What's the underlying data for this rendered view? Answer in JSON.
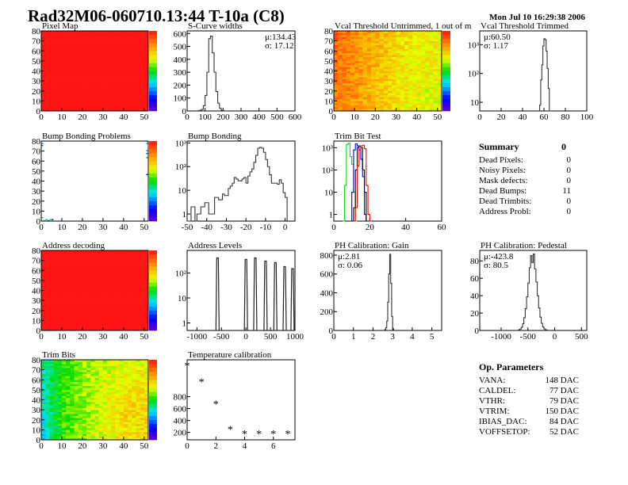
{
  "header": {
    "title": "Rad32M06-060710.13:44 T-10a (C8)",
    "date": "Mon Jul 10 16:29:38 2006"
  },
  "summary": {
    "title": "Summary",
    "value": "0",
    "rows": [
      {
        "label": "Dead Pixels:",
        "value": "0"
      },
      {
        "label": "Noisy Pixels:",
        "value": "0"
      },
      {
        "label": "Mask defects:",
        "value": "0"
      },
      {
        "label": "Dead Bumps:",
        "value": "11"
      },
      {
        "label": "Dead Trimbits:",
        "value": "0"
      },
      {
        "label": "Address Probl:",
        "value": "0"
      }
    ]
  },
  "op_parameters": {
    "title": "Op. Parameters",
    "rows": [
      {
        "label": "VANA:",
        "value": "148 DAC"
      },
      {
        "label": "CALDEL:",
        "value": "77 DAC"
      },
      {
        "label": "VTHR:",
        "value": "79 DAC"
      },
      {
        "label": "VTRIM:",
        "value": "150 DAC"
      },
      {
        "label": "IBIAS_DAC:",
        "value": "84 DAC"
      },
      {
        "label": "VOFFSETOP:",
        "value": "52 DAC"
      }
    ]
  },
  "chart_data": [
    {
      "type": "heatmap",
      "title": "Pixel Map",
      "xlim": [
        0,
        52
      ],
      "ylim": [
        0,
        80
      ],
      "zlim": [
        0,
        10
      ],
      "xticks": [
        "0",
        "10",
        "20",
        "30",
        "40",
        "50"
      ],
      "yticks": [
        "0",
        "10",
        "20",
        "30",
        "40",
        "50",
        "60",
        "70",
        "80"
      ],
      "grid": [
        [
          10,
          10,
          10,
          10,
          10,
          10
        ],
        [
          10,
          10,
          10,
          10,
          10,
          10
        ],
        [
          10,
          10,
          10,
          10,
          10,
          10
        ],
        [
          10,
          10,
          10,
          10,
          10,
          10
        ]
      ]
    },
    {
      "type": "bar",
      "title": "S-Curve widths",
      "xlim": [
        0,
        600
      ],
      "ylim": [
        0,
        620
      ],
      "log": false,
      "xticks": [
        "0",
        "100",
        "200",
        "300",
        "400",
        "500",
        "600"
      ],
      "yticks": [
        "0",
        "100",
        "200",
        "300",
        "400",
        "500",
        "600"
      ],
      "stats": {
        "mu": "μ:134.43",
        "sigma": "σ: 17.12"
      },
      "bin_start": 60,
      "bin_width": 10,
      "values": [
        2,
        5,
        12,
        40,
        120,
        300,
        560,
        580,
        450,
        300,
        150,
        60,
        20,
        5,
        2,
        0
      ]
    },
    {
      "type": "heatmap",
      "title": "Vcal Threshold Untrimmed, 1 out of m",
      "xlim": [
        0,
        52
      ],
      "ylim": [
        0,
        80
      ],
      "zlim": [
        0,
        130
      ],
      "xticks": [
        "0",
        "10",
        "20",
        "30",
        "40",
        "50"
      ],
      "yticks": [
        "0",
        "10",
        "20",
        "30",
        "40",
        "50",
        "60",
        "70",
        "80"
      ],
      "grid": [
        [
          110,
          104,
          97,
          90,
          86,
          85
        ],
        [
          112,
          105,
          98,
          90,
          86,
          86
        ],
        [
          114,
          106,
          99,
          91,
          88,
          87
        ],
        [
          116,
          108,
          100,
          93,
          90,
          88
        ]
      ]
    },
    {
      "type": "bar",
      "title": "Vcal Threshold Trimmed",
      "xlim": [
        0,
        100
      ],
      "ylim": [
        5,
        3000
      ],
      "log": true,
      "xticks": [
        "0",
        "20",
        "40",
        "60",
        "80",
        "100"
      ],
      "yticks": [
        "10",
        "10²",
        "10³"
      ],
      "stats": {
        "mu": "μ:60.50",
        "sigma": "σ: 1.17"
      },
      "bin_start": 56,
      "bin_width": 1,
      "values": [
        8,
        60,
        200,
        900,
        1600,
        1500,
        600,
        150,
        30,
        5
      ]
    },
    {
      "type": "heatmap",
      "title": "Bump Bonding Problems",
      "xlim": [
        0,
        52
      ],
      "ylim": [
        0,
        80
      ],
      "zlim": [
        0,
        2
      ],
      "xticks": [
        "0",
        "10",
        "20",
        "30",
        "40",
        "50"
      ],
      "yticks": [
        "0",
        "10",
        "20",
        "30",
        "40",
        "50",
        "60",
        "70",
        "80"
      ],
      "points": [
        [
          0,
          75,
          0.5
        ],
        [
          0,
          77,
          0.5
        ],
        [
          52,
          79,
          0.7
        ],
        [
          52,
          77,
          0.5
        ],
        [
          52,
          70,
          0.5
        ],
        [
          52,
          67,
          0.4
        ],
        [
          52,
          63,
          0.5
        ],
        [
          52,
          46,
          0.3
        ],
        [
          0,
          3,
          1.0
        ],
        [
          1,
          0,
          0.8
        ],
        [
          2,
          1,
          0.6
        ],
        [
          3,
          0,
          0.5
        ],
        [
          4,
          1,
          1.0
        ],
        [
          5,
          1,
          0.3
        ]
      ]
    },
    {
      "type": "bar",
      "title": "Bump Bonding",
      "xlim": [
        -50,
        5
      ],
      "ylim": [
        0.5,
        1200
      ],
      "log": true,
      "xticks": [
        "-50",
        "-40",
        "-30",
        "-20",
        "-10",
        "0"
      ],
      "yticks": [
        "1",
        "10",
        "10²",
        "10³"
      ],
      "bin_start": -50,
      "bin_width": 1,
      "values": [
        0.4,
        0.4,
        2,
        2,
        0.4,
        1,
        1,
        2,
        2,
        3,
        3,
        1,
        1,
        1,
        5,
        5,
        4,
        4,
        7,
        6,
        6,
        12,
        15,
        20,
        35,
        30,
        25,
        25,
        30,
        35,
        20,
        40,
        60,
        80,
        150,
        300,
        600,
        650,
        600,
        400,
        200,
        100,
        45,
        20,
        20,
        20,
        18,
        28,
        20,
        8,
        5
      ]
    },
    {
      "type": "bar",
      "title": "Trim Bit Test",
      "xlim": [
        0,
        60
      ],
      "ylim": [
        0.5,
        2000
      ],
      "log": true,
      "xticks": [
        "0",
        "20",
        "40",
        "60"
      ],
      "yticks": [
        "1",
        "10",
        "10²",
        "10³"
      ],
      "series": [
        {
          "color": "#00dd00",
          "bin_start": 5,
          "bin_width": 1,
          "values": [
            0.4,
            20,
            1400,
            1600,
            400,
            180,
            10,
            0.4
          ]
        },
        {
          "color": "#0000ff",
          "bin_start": 9,
          "bin_width": 1,
          "values": [
            0.4,
            10,
            800,
            1500,
            1200,
            800,
            300,
            50,
            1,
            0.4
          ]
        },
        {
          "color": "#000000",
          "bin_start": 10,
          "bin_width": 1,
          "values": [
            0.4,
            2,
            100,
            1000,
            1200,
            1000,
            100,
            10,
            0.4
          ]
        },
        {
          "color": "#ff0000",
          "bin_start": 11,
          "bin_width": 1,
          "values": [
            0.4,
            2,
            150,
            800,
            1200,
            1300,
            900,
            20,
            1,
            0.4
          ]
        }
      ]
    },
    {
      "type": "heatmap",
      "title": "Address decoding",
      "xlim": [
        0,
        52
      ],
      "ylim": [
        0,
        80
      ],
      "zlim": [
        0,
        1
      ],
      "xticks": [
        "0",
        "10",
        "20",
        "30",
        "40",
        "50"
      ],
      "yticks": [
        "0",
        "10",
        "20",
        "30",
        "40",
        "50",
        "60",
        "70",
        "80"
      ],
      "grid": [
        [
          1,
          1,
          1,
          1,
          1,
          1
        ],
        [
          1,
          1,
          1,
          1,
          1,
          1
        ],
        [
          1,
          1,
          1,
          1,
          1,
          1
        ],
        [
          1,
          1,
          1,
          1,
          1,
          1
        ]
      ]
    },
    {
      "type": "bar",
      "title": "Address Levels",
      "xlim": [
        -1200,
        1000
      ],
      "ylim": [
        0.5,
        800
      ],
      "log": true,
      "xticks": [
        "-1000",
        "-500",
        "0",
        "500",
        "1000"
      ],
      "xtick_values": [
        -1000,
        -500,
        0,
        500,
        1000
      ],
      "yticks": [
        "1",
        "10",
        "10²"
      ],
      "peaks": [
        {
          "x": -580,
          "height": 400
        },
        {
          "x": 0,
          "height": 350
        },
        {
          "x": 190,
          "height": 400
        },
        {
          "x": 400,
          "height": 300
        },
        {
          "x": 600,
          "height": 260
        },
        {
          "x": 790,
          "height": 180
        },
        {
          "x": 950,
          "height": 150
        }
      ]
    },
    {
      "type": "bar",
      "title": "PH Calibration: Gain",
      "xlim": [
        0,
        5.5
      ],
      "ylim": [
        0,
        850
      ],
      "log": false,
      "xticks": [
        "0",
        "1",
        "2",
        "3",
        "4",
        "5"
      ],
      "yticks": [
        "0",
        "200",
        "400",
        "600",
        "800"
      ],
      "stats": {
        "mu": "μ:2.81",
        "sigma": "σ: 0.06"
      },
      "bin_start": 2.6,
      "bin_width": 0.05,
      "values": [
        10,
        30,
        100,
        300,
        600,
        810,
        500,
        150,
        20
      ]
    },
    {
      "type": "bar",
      "title": "PH Calibration: Pedestal",
      "xlim": [
        -1400,
        600
      ],
      "ylim": [
        0,
        92
      ],
      "log": false,
      "xticks": [
        "-1000",
        "-500",
        "0",
        "500"
      ],
      "xtick_values": [
        -1000,
        -500,
        0,
        500
      ],
      "yticks": [
        "0",
        "20",
        "40",
        "60",
        "80"
      ],
      "stats": {
        "mu": "μ:-423.8",
        "sigma": "σ: 80.5"
      },
      "bin_start": -700,
      "bin_width": 25,
      "values": [
        0.2,
        0.7,
        1.6,
        3.7,
        7.8,
        14.6,
        25,
        38.7,
        54.4,
        72,
        86,
        78,
        88,
        70.6,
        55.7,
        39.9,
        25.9,
        15.3,
        8.2,
        4,
        1.8,
        0.7,
        0.3
      ]
    },
    {
      "type": "heatmap",
      "title": "Trim Bits",
      "xlim": [
        0,
        52
      ],
      "ylim": [
        0,
        80
      ],
      "zlim": [
        0,
        16
      ],
      "xticks": [
        "0",
        "10",
        "20",
        "30",
        "40",
        "50"
      ],
      "yticks": [
        "0",
        "10",
        "20",
        "30",
        "40",
        "50",
        "60",
        "70",
        "80"
      ],
      "grid": [
        [
          5.5,
          8.5,
          9.5,
          10.5,
          11,
          11.5
        ],
        [
          6,
          8.5,
          9.5,
          10.5,
          11.5,
          11.5
        ],
        [
          6.5,
          8.5,
          9.5,
          10.5,
          11,
          11
        ],
        [
          6.5,
          8.5,
          9.5,
          10,
          10.5,
          10.5
        ]
      ]
    },
    {
      "type": "scatter",
      "title": "Temperature calibration",
      "xlim": [
        0,
        7.5
      ],
      "ylim": [
        75,
        1420
      ],
      "xticks": [
        "0",
        "2",
        "4",
        "6"
      ],
      "xtick_values": [
        0,
        2,
        4,
        6
      ],
      "yticks": [
        "200",
        "400",
        "600",
        "800"
      ],
      "ytick_values": [
        200,
        400,
        600,
        800
      ],
      "x": [
        0,
        1,
        2,
        3,
        4,
        5,
        6,
        7
      ],
      "y": [
        1327,
        1051,
        683,
        254,
        183,
        183,
        183,
        183
      ]
    }
  ]
}
